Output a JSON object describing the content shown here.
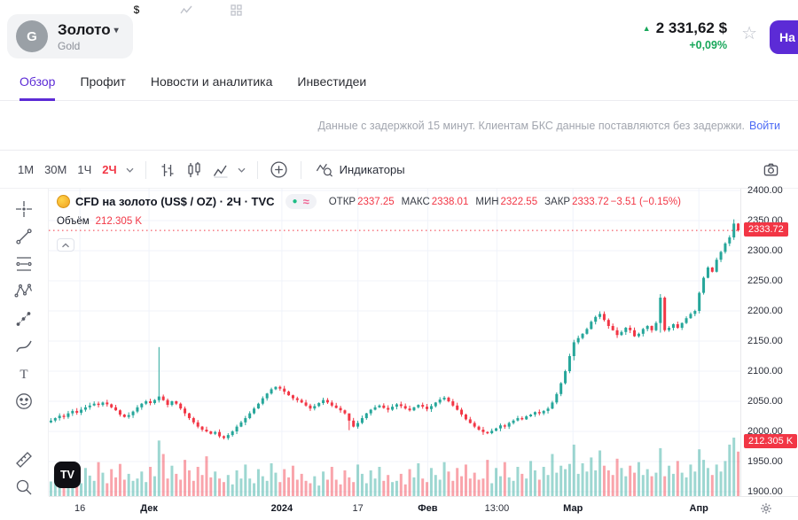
{
  "header": {
    "symbol_letter": "G",
    "title": "Золото",
    "subtitle": "Gold",
    "price": "2 331,62 $",
    "change": "+0,09%",
    "action_button": "На"
  },
  "tabs": [
    {
      "label": "Обзор",
      "active": true
    },
    {
      "label": "Профит",
      "active": false
    },
    {
      "label": "Новости и аналитика",
      "active": false
    },
    {
      "label": "Инвестидеи",
      "active": false
    }
  ],
  "notice": {
    "text": "Данные с задержкой 15 минут. Клиентам БКС данные поставляются без задержки.",
    "link": "Войти"
  },
  "toolbar": {
    "timeframes": [
      "1М",
      "30М",
      "1Ч",
      "2Ч"
    ],
    "active_timeframe": "2Ч",
    "indicators_label": "Индикаторы"
  },
  "legend": {
    "title": "CFD на золото (US$ / OZ) · 2Ч · TVC",
    "open_label": "ОТКР",
    "open": "2337.25",
    "high_label": "МАКС",
    "high": "2338.01",
    "low_label": "МИН",
    "low": "2322.55",
    "close_label": "ЗАКР",
    "close": "2333.72",
    "change": "−3.51 (−0.15%)",
    "volume_label": "Объём",
    "volume": "212.305 K",
    "watermark": "TV"
  },
  "axis": {
    "price_ticks": [
      "2400.00",
      "2350.00",
      "2300.00",
      "2250.00",
      "2200.00",
      "2150.00",
      "2100.00",
      "2050.00",
      "2000.00",
      "1950.00",
      "1900.00"
    ],
    "price_tag": "2333.72",
    "volume_tag": "212.305 K",
    "time_ticks": [
      {
        "label": "16",
        "pos": 0.045,
        "strong": false
      },
      {
        "label": "Дек",
        "pos": 0.145,
        "strong": true
      },
      {
        "label": "2024",
        "pos": 0.337,
        "strong": true
      },
      {
        "label": "17",
        "pos": 0.447,
        "strong": false
      },
      {
        "label": "Фев",
        "pos": 0.548,
        "strong": true
      },
      {
        "label": "13:00",
        "pos": 0.648,
        "strong": false
      },
      {
        "label": "Мар",
        "pos": 0.758,
        "strong": true
      },
      {
        "label": "Апр",
        "pos": 0.94,
        "strong": true
      }
    ]
  },
  "icons": {
    "up_triangle": "▲",
    "star": "☆",
    "dot_badge": "●",
    "approx_badge": "≈"
  },
  "colors": {
    "accent": "#5c2bd6",
    "green": "#18a75a",
    "up": "#26a69a",
    "down": "#f23645",
    "vol_up": "rgba(38,166,154,0.45)",
    "vol_down": "rgba(242,54,69,0.45)",
    "link": "#4d6bf5"
  },
  "chart_data": {
    "type": "candlestick",
    "instrument": "CFD на золото (US$ / OZ)",
    "interval": "2Ч",
    "exchange": "TVC",
    "ohlc_last": {
      "open": 2337.25,
      "high": 2338.01,
      "low": 2322.55,
      "close": 2333.72,
      "change": -3.51,
      "change_pct": -0.15
    },
    "last_price": 2333.72,
    "volume_last": "212.305 K",
    "ylim": [
      1900,
      2400
    ],
    "price_step": 50,
    "first_open": 2015,
    "closes": [
      2018,
      2022,
      2026,
      2024,
      2030,
      2034,
      2031,
      2036,
      2040,
      2043,
      2046,
      2044,
      2048,
      2045,
      2040,
      2035,
      2028,
      2024,
      2027,
      2033,
      2040,
      2046,
      2050,
      2047,
      2052,
      2058,
      2052,
      2044,
      2050,
      2046,
      2038,
      2030,
      2022,
      2015,
      2008,
      2003,
      2000,
      1996,
      1999,
      1992,
      1989,
      1994,
      2000,
      2008,
      2015,
      2022,
      2030,
      2038,
      2046,
      2055,
      2063,
      2070,
      2074,
      2071,
      2066,
      2060,
      2055,
      2052,
      2048,
      2043,
      2038,
      2042,
      2047,
      2052,
      2048,
      2043,
      2039,
      2035,
      2030,
      2018,
      2008,
      2014,
      2022,
      2030,
      2036,
      2040,
      2043,
      2039,
      2036,
      2041,
      2045,
      2042,
      2038,
      2035,
      2040,
      2044,
      2041,
      2037,
      2042,
      2048,
      2053,
      2056,
      2050,
      2043,
      2036,
      2028,
      2020,
      2014,
      2008,
      2003,
      1999,
      1997,
      2001,
      2005,
      2010,
      2008,
      2014,
      2018,
      2022,
      2020,
      2025,
      2028,
      2032,
      2030,
      2034,
      2038,
      2048,
      2062,
      2080,
      2100,
      2125,
      2148,
      2155,
      2162,
      2170,
      2182,
      2190,
      2195,
      2185,
      2175,
      2168,
      2160,
      2165,
      2172,
      2168,
      2158,
      2162,
      2170,
      2175,
      2168,
      2180,
      2222,
      2168,
      2172,
      2178,
      2172,
      2180,
      2188,
      2195,
      2200,
      2230,
      2255,
      2272,
      2265,
      2285,
      2298,
      2312,
      2322,
      2345,
      2333.72
    ],
    "volumes": [
      0.25,
      0.38,
      0.18,
      0.45,
      0.3,
      0.52,
      0.28,
      0.22,
      0.48,
      0.35,
      0.26,
      0.58,
      0.4,
      0.22,
      0.46,
      0.32,
      0.55,
      0.28,
      0.38,
      0.26,
      0.3,
      0.42,
      0.24,
      0.5,
      0.34,
      0.95,
      0.72,
      0.3,
      0.52,
      0.38,
      0.28,
      0.62,
      0.44,
      0.26,
      0.5,
      0.36,
      0.68,
      0.32,
      0.42,
      0.3,
      0.24,
      0.36,
      0.2,
      0.44,
      0.3,
      0.54,
      0.3,
      0.22,
      0.46,
      0.34,
      0.26,
      0.56,
      0.4,
      0.24,
      0.46,
      0.32,
      0.52,
      0.28,
      0.38,
      0.26,
      0.22,
      0.34,
      0.18,
      0.42,
      0.28,
      0.5,
      0.28,
      0.2,
      0.44,
      0.32,
      0.24,
      0.54,
      0.38,
      0.22,
      0.44,
      0.3,
      0.5,
      0.26,
      0.36,
      0.24,
      0.26,
      0.38,
      0.2,
      0.46,
      0.32,
      0.56,
      0.3,
      0.24,
      0.48,
      0.36,
      0.28,
      0.58,
      0.42,
      0.26,
      0.48,
      0.34,
      0.54,
      0.3,
      0.4,
      0.28,
      0.3,
      0.62,
      0.22,
      0.48,
      0.34,
      0.58,
      0.32,
      0.26,
      0.5,
      0.38,
      0.3,
      0.6,
      0.44,
      0.28,
      0.5,
      0.36,
      0.72,
      0.4,
      0.52,
      0.46,
      0.55,
      0.88,
      0.38,
      0.56,
      0.42,
      0.66,
      0.44,
      0.78,
      0.52,
      0.44,
      0.36,
      0.64,
      0.48,
      0.34,
      0.52,
      0.4,
      0.58,
      0.36,
      0.46,
      0.34,
      0.4,
      0.82,
      0.34,
      0.52,
      0.38,
      0.6,
      0.4,
      0.32,
      0.54,
      0.42,
      0.8,
      0.62,
      0.48,
      0.36,
      0.54,
      0.42,
      0.6,
      0.88,
      1.0,
      0.76
    ],
    "wick_overrides": {
      "25": [
        2140,
        2048
      ],
      "69": [
        2022,
        2002
      ],
      "121": [
        2152,
        2118
      ],
      "141": [
        2228,
        2164
      ],
      "158": [
        2352,
        2318
      ]
    },
    "x_labels": [
      "16",
      "Дек",
      "2024",
      "17",
      "Фев",
      "13:00",
      "Мар",
      "Апр"
    ]
  }
}
